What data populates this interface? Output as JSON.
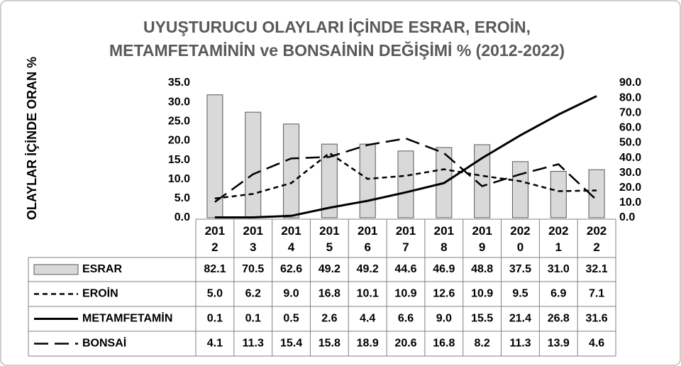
{
  "chart_data": {
    "type": "combo",
    "title": [
      "UYUŞTURUCU OLAYLARI İÇİNDE ESRAR, EROİN,",
      "METAMFETAMİNİN ve BONSAİNİN DEĞİŞİMİ  % (2012-2022)"
    ],
    "y_label": "OLAYLAR İÇİNDE ORAN %",
    "categories": [
      "2012",
      "2013",
      "2014",
      "2015",
      "2016",
      "2017",
      "2018",
      "2019",
      "2020",
      "2021",
      "2022"
    ],
    "ylim": [
      0,
      35
    ],
    "yticks": [
      {
        "value": 0,
        "label": "0.0"
      },
      {
        "value": 5,
        "label": "5.0"
      },
      {
        "value": 10,
        "label": "10.0"
      },
      {
        "value": 15,
        "label": "15.0"
      },
      {
        "value": 20,
        "label": "20.0"
      },
      {
        "value": 25,
        "label": "25.0"
      },
      {
        "value": 30,
        "label": "30.0"
      },
      {
        "value": 35,
        "label": "35.0"
      }
    ],
    "y2lim": [
      0,
      90
    ],
    "y2ticks": [
      {
        "value": 0,
        "label": "0.0"
      },
      {
        "value": 10,
        "label": "10.0"
      },
      {
        "value": 20,
        "label": "20.0"
      },
      {
        "value": 30,
        "label": "30.0"
      },
      {
        "value": 40,
        "label": "40.0"
      },
      {
        "value": 50,
        "label": "50.0"
      },
      {
        "value": 60,
        "label": "60.0"
      },
      {
        "value": 70,
        "label": "70.0"
      },
      {
        "value": 80,
        "label": "80.0"
      },
      {
        "value": 90,
        "label": "90.0"
      }
    ],
    "series": [
      {
        "name": "ESRAR",
        "type": "bar",
        "axis": "y2",
        "color": "#d9d9d9",
        "values": [
          82.1,
          70.5,
          62.6,
          49.2,
          49.2,
          44.6,
          46.9,
          48.8,
          37.5,
          31.0,
          32.1
        ],
        "value_labels": [
          "82.1",
          "70.5",
          "62.6",
          "49.2",
          "49.2",
          "44.6",
          "46.9",
          "48.8",
          "37.5",
          "31.0",
          "32.1"
        ]
      },
      {
        "name": "EROİN",
        "type": "line",
        "dash": "short",
        "color": "#000000",
        "values": [
          5.0,
          6.2,
          9.0,
          16.8,
          10.1,
          10.9,
          12.6,
          10.9,
          9.5,
          6.9,
          7.1
        ],
        "value_labels": [
          "5.0",
          "6.2",
          "9.0",
          "16.8",
          "10.1",
          "10.9",
          "12.6",
          "10.9",
          "9.5",
          "6.9",
          "7.1"
        ]
      },
      {
        "name": "METAMFETAMİN",
        "type": "line",
        "dash": "solid",
        "color": "#000000",
        "values": [
          0.1,
          0.1,
          0.5,
          2.6,
          4.4,
          6.6,
          9.0,
          15.5,
          21.4,
          26.8,
          31.6
        ],
        "value_labels": [
          "0.1",
          "0.1",
          "0.5",
          "2.6",
          "4.4",
          "6.6",
          "9.0",
          "15.5",
          "21.4",
          "26.8",
          "31.6"
        ]
      },
      {
        "name": "BONSAİ",
        "type": "line",
        "dash": "long",
        "color": "#000000",
        "values": [
          4.1,
          11.3,
          15.4,
          15.8,
          18.9,
          20.6,
          16.8,
          8.2,
          11.3,
          13.9,
          4.6
        ],
        "value_labels": [
          "4.1",
          "11.3",
          "15.4",
          "15.8",
          "18.9",
          "20.6",
          "16.8",
          "8.2",
          "11.3",
          "13.9",
          "4.6"
        ]
      }
    ]
  }
}
